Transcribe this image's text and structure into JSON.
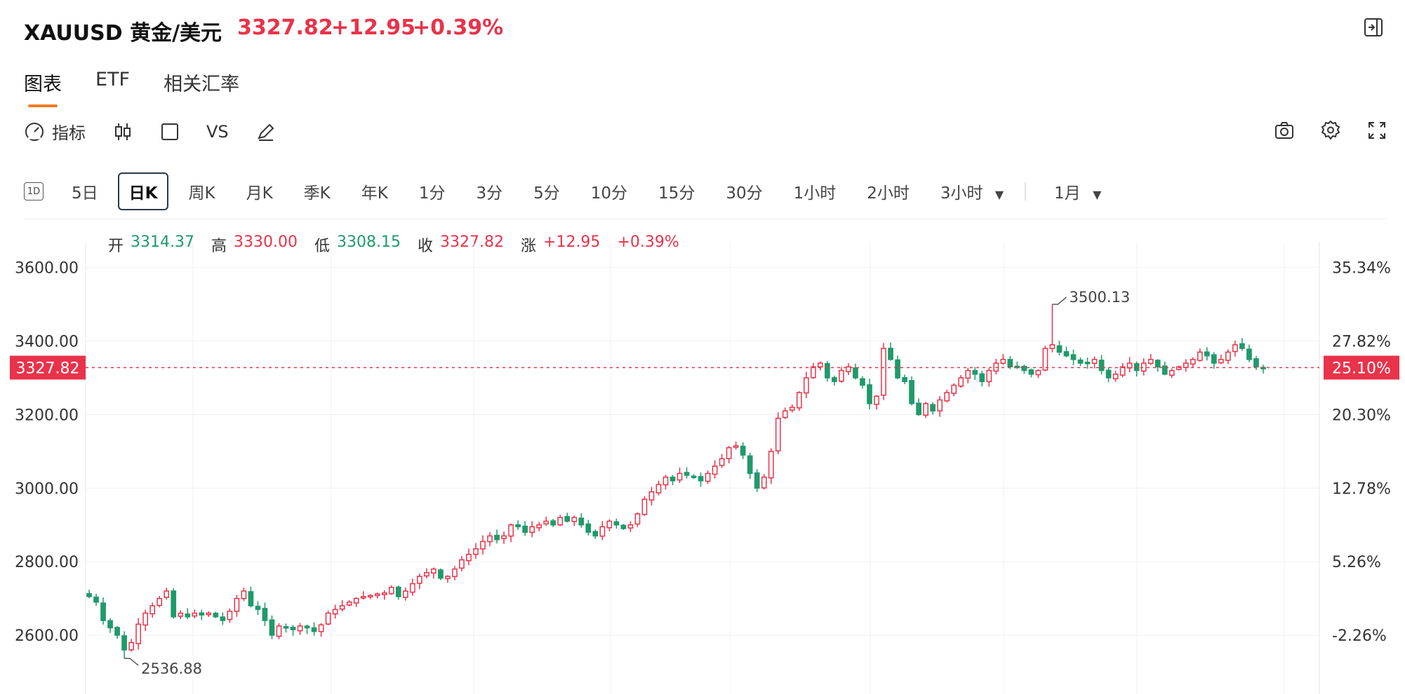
{
  "header": {
    "title": "XAUUSD 黄金/美元",
    "price": "3327.82",
    "change": "+12.95",
    "change_pct": "+0.39%"
  },
  "tabs": [
    {
      "label": "图表",
      "active": true
    },
    {
      "label": "ETF",
      "active": false
    },
    {
      "label": "相关汇率",
      "active": false
    }
  ],
  "toolbar": {
    "indicator_label": "指标",
    "vs_label": "VS",
    "icons": [
      "gauge-icon",
      "candlestick-icon",
      "square-icon",
      "draw-icon"
    ],
    "right_icons": [
      "camera-icon",
      "gear-icon",
      "fullscreen-icon"
    ]
  },
  "periods": {
    "intraday_icon_label": "1D",
    "items": [
      "5日",
      "日K",
      "周K",
      "月K",
      "季K",
      "年K",
      "1分",
      "3分",
      "5分",
      "10分",
      "15分",
      "30分",
      "1小时",
      "2小时",
      "3小时"
    ],
    "active": "日K",
    "range": "1月"
  },
  "ohlc": {
    "open_label": "开",
    "open": "3314.37",
    "high_label": "高",
    "high": "3330.00",
    "low_label": "低",
    "low": "3308.15",
    "close_label": "收",
    "close": "3327.82",
    "change_label": "涨",
    "change": "+12.95",
    "change_pct": "+0.39%"
  },
  "colors": {
    "up": "#e8334a",
    "down": "#1f9a6b",
    "accent": "#f07b22"
  },
  "chart_data": {
    "type": "candlestick",
    "y_left_ticks": [
      "3600.00",
      "3400.00",
      "3200.00",
      "3000.00",
      "2800.00",
      "2600.00"
    ],
    "y_right_ticks": [
      "35.34%",
      "27.82%",
      "20.30%",
      "12.78%",
      "5.26%",
      "-2.26%"
    ],
    "ylim": [
      2440,
      3670
    ],
    "current_price": 3327.82,
    "current_price_label": "3327.82",
    "current_pct_label": "25.10%",
    "max_label": "3500.13",
    "max_value": 3500.13,
    "min_label": "2536.88",
    "min_value": 2536.88,
    "closes": [
      2705,
      2690,
      2640,
      2620,
      2600,
      2560,
      2580,
      2630,
      2660,
      2680,
      2700,
      2720,
      2650,
      2660,
      2650,
      2660,
      2655,
      2660,
      2650,
      2640,
      2665,
      2700,
      2720,
      2680,
      2670,
      2640,
      2600,
      2625,
      2620,
      2615,
      2625,
      2620,
      2610,
      2628,
      2660,
      2670,
      2680,
      2690,
      2700,
      2705,
      2708,
      2712,
      2715,
      2730,
      2705,
      2720,
      2740,
      2760,
      2770,
      2780,
      2755,
      2760,
      2780,
      2805,
      2820,
      2835,
      2855,
      2870,
      2860,
      2870,
      2900,
      2895,
      2880,
      2895,
      2900,
      2910,
      2900,
      2920,
      2910,
      2920,
      2900,
      2880,
      2870,
      2895,
      2910,
      2900,
      2890,
      2900,
      2930,
      2970,
      2990,
      3010,
      3030,
      3020,
      3040,
      3035,
      3030,
      3020,
      3040,
      3060,
      3080,
      3110,
      3115,
      3090,
      3040,
      3000,
      3030,
      3100,
      3190,
      3210,
      3220,
      3260,
      3300,
      3330,
      3340,
      3300,
      3290,
      3320,
      3330,
      3300,
      3280,
      3230,
      3250,
      3380,
      3350,
      3300,
      3290,
      3230,
      3200,
      3230,
      3210,
      3240,
      3260,
      3280,
      3300,
      3320,
      3310,
      3290,
      3320,
      3340,
      3350,
      3330,
      3330,
      3320,
      3310,
      3320,
      3380,
      3390,
      3370,
      3360,
      3350,
      3340,
      3340,
      3350,
      3320,
      3300,
      3310,
      3330,
      3340,
      3320,
      3340,
      3350,
      3330,
      3310,
      3320,
      3330,
      3340,
      3350,
      3370,
      3360,
      3340,
      3350,
      3370,
      3390,
      3380,
      3350,
      3330,
      3328
    ]
  }
}
